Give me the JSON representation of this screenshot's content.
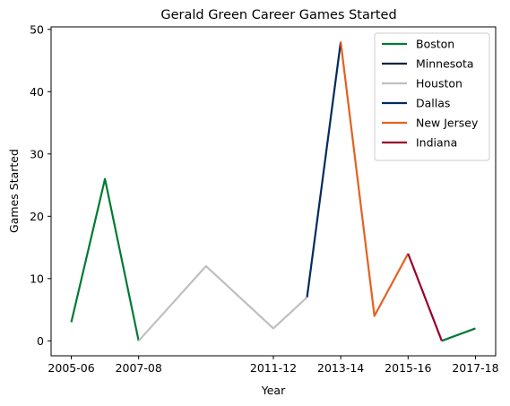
{
  "chart_data": {
    "type": "line",
    "title": "Gerald Green Career Games Started",
    "xlabel": "Year",
    "ylabel": "Games Started",
    "x_tick_labels": [
      "2005-06",
      "2007-08",
      "2011-12",
      "2013-14",
      "2015-16",
      "2017-18"
    ],
    "y_ticks": [
      0,
      10,
      20,
      30,
      40,
      50
    ],
    "ylim": [
      -2.4,
      50.4
    ],
    "grid": false,
    "legend_position": "top-right",
    "points": [
      {
        "season": "2005-06",
        "games_started": 3
      },
      {
        "season": "2006-07",
        "games_started": 26
      },
      {
        "season": "2007-08",
        "games_started": 0
      },
      {
        "season": "2009-10",
        "games_started": 12
      },
      {
        "season": "2011-12",
        "games_started": 2
      },
      {
        "season": "2012-13",
        "games_started": 7
      },
      {
        "season": "2013-14",
        "games_started": 48
      },
      {
        "season": "2014-15",
        "games_started": 4
      },
      {
        "season": "2015-16",
        "games_started": 14
      },
      {
        "season": "2016-17",
        "games_started": 0
      },
      {
        "season": "2017-18",
        "games_started": 2
      }
    ],
    "series": [
      {
        "name": "Boston",
        "color": "#007a33",
        "segments": [
          [
            0,
            2
          ],
          [
            9,
            10
          ]
        ]
      },
      {
        "name": "Minnesota",
        "color": "#0c2340",
        "segments": []
      },
      {
        "name": "Houston",
        "color": "#bfbfbf",
        "segments": [
          [
            2,
            5
          ]
        ]
      },
      {
        "name": "Dallas",
        "color": "#002b5c",
        "segments": [
          [
            5,
            6
          ]
        ]
      },
      {
        "name": "New Jersey",
        "color": "#e56020",
        "segments": [
          [
            6,
            8
          ]
        ]
      },
      {
        "name": "Indiana",
        "color": "#98002e",
        "segments": [
          [
            8,
            9
          ]
        ]
      }
    ]
  }
}
